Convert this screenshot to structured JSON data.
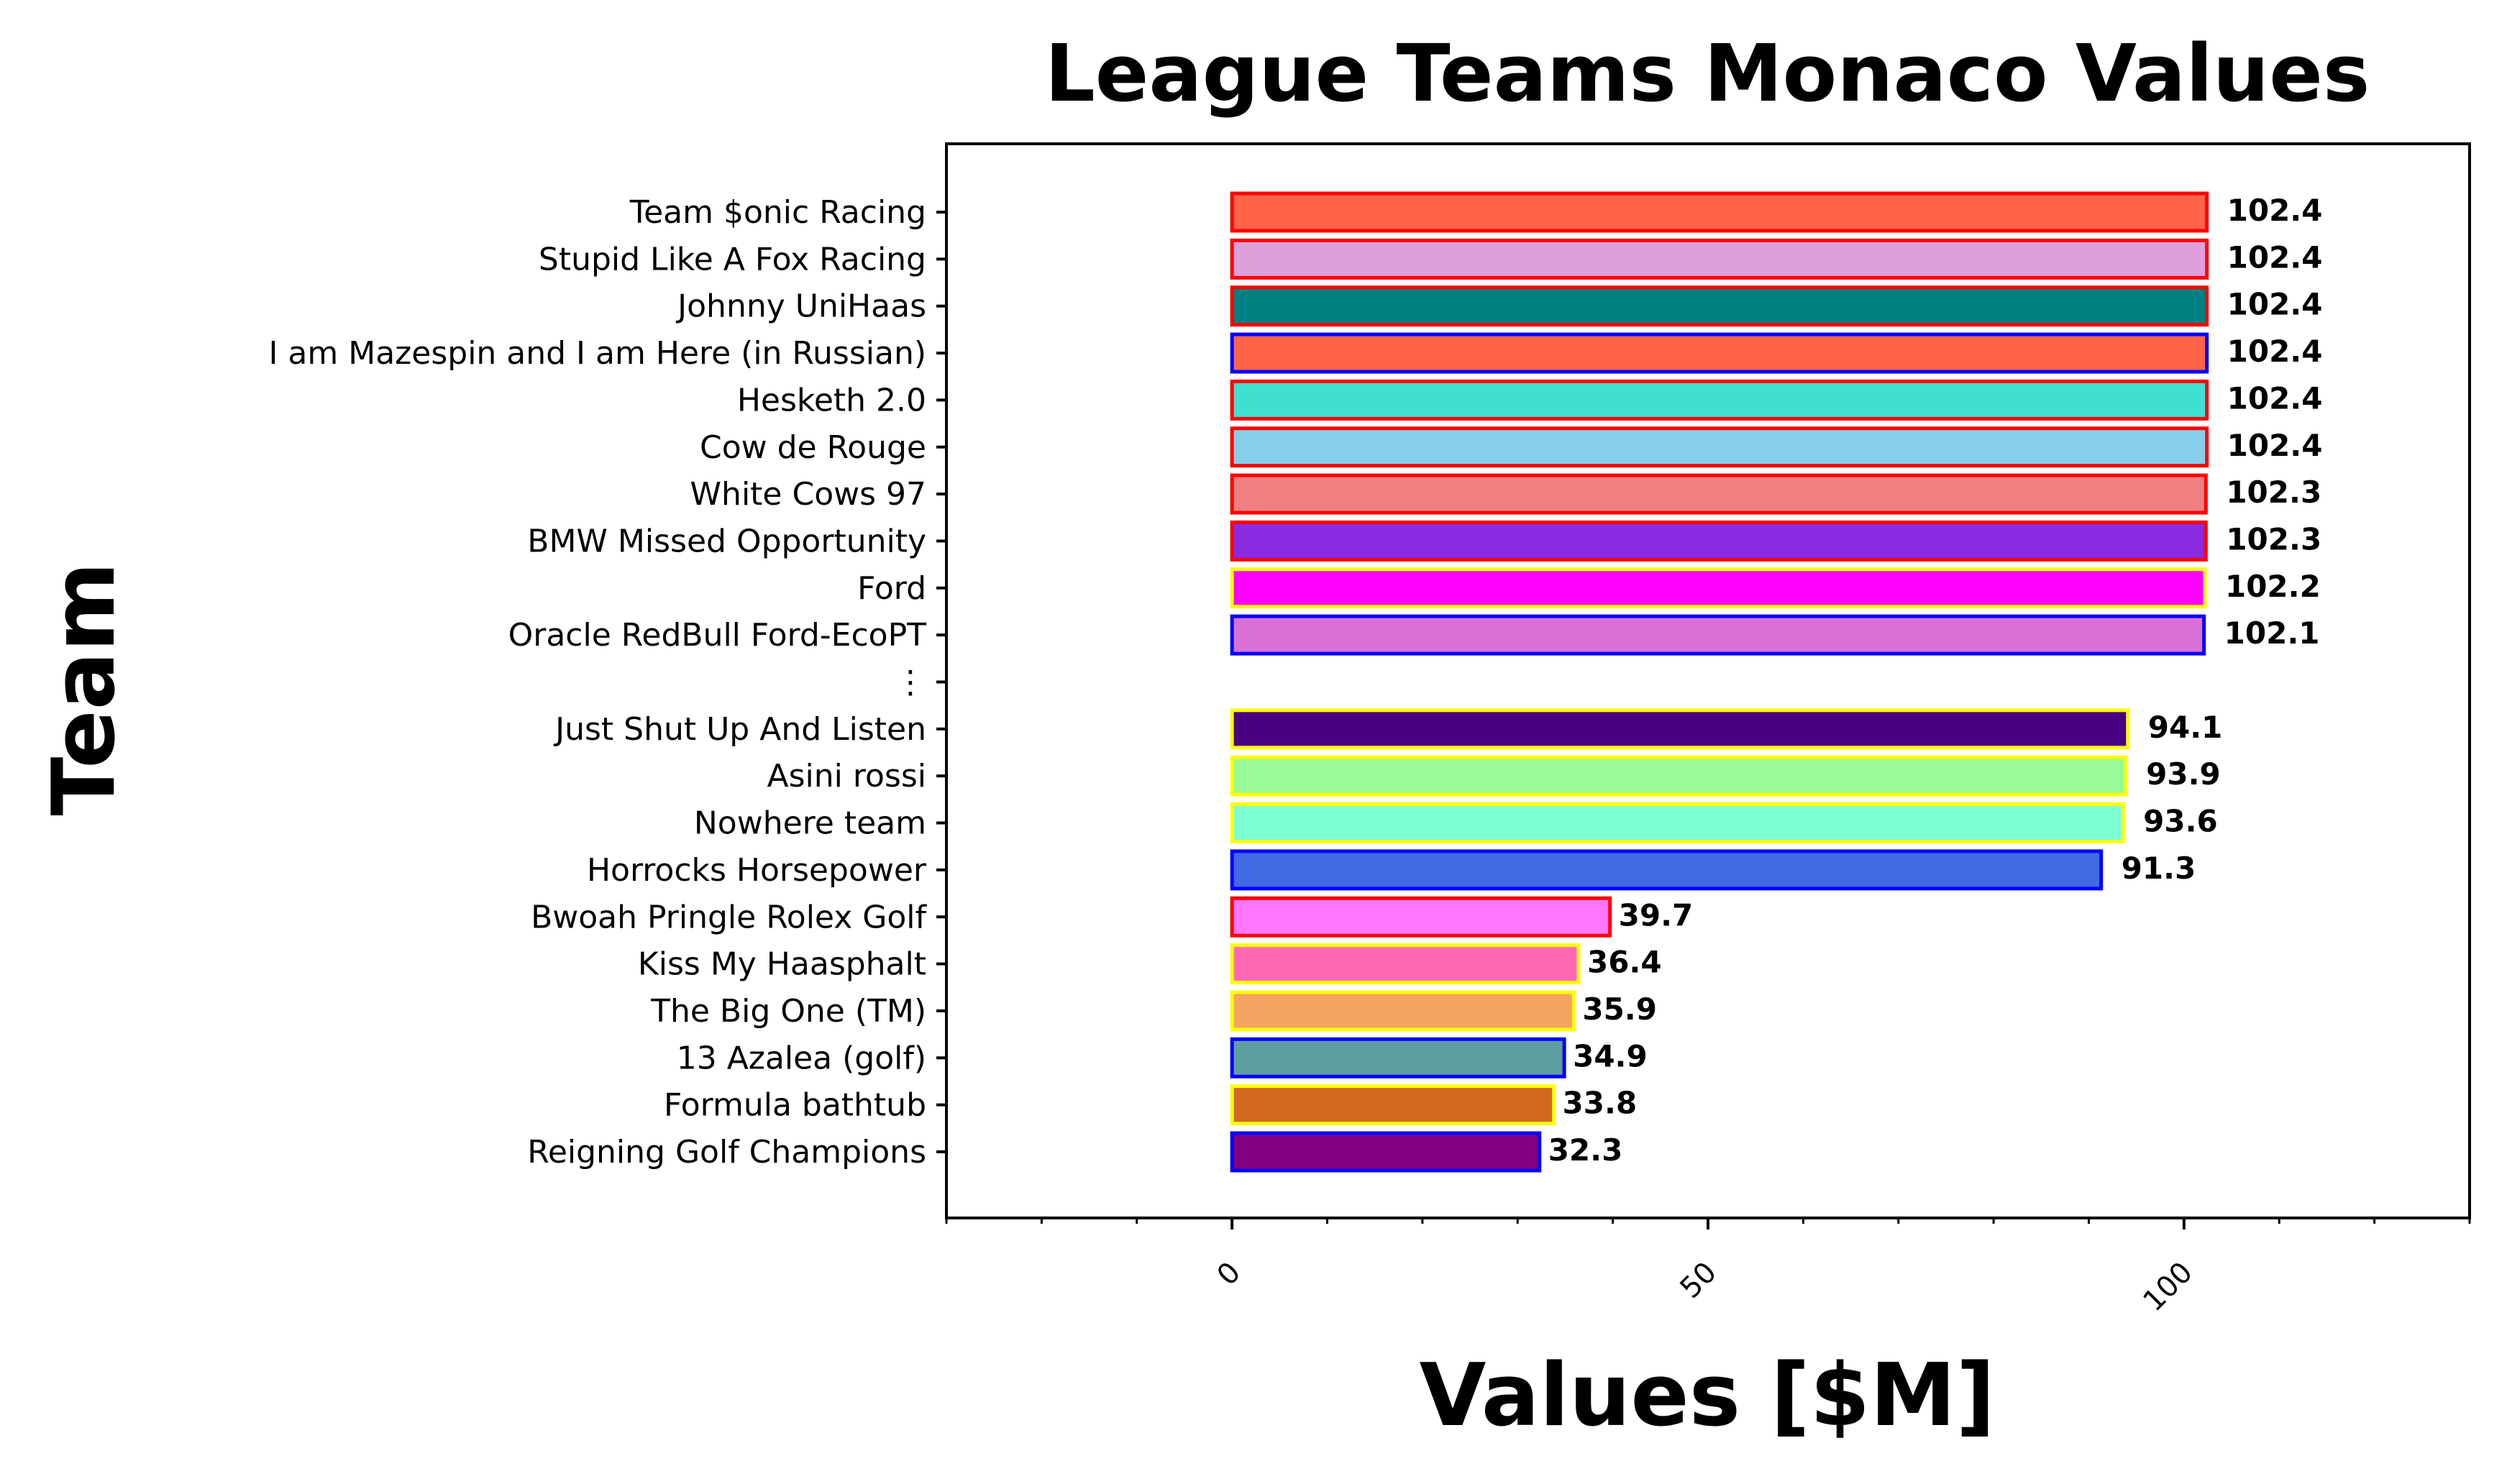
{
  "chart_data": {
    "type": "bar",
    "orientation": "horizontal",
    "title": "League Teams Monaco Values",
    "xlabel": "Values [$M]",
    "ylabel": "Team",
    "xlim": [
      -30,
      130
    ],
    "x_major_ticks": [
      0,
      50,
      100
    ],
    "x_minor_tick_step": 10,
    "grid": false,
    "legend": "none",
    "categories": [
      "Team $onic Racing",
      "Stupid Like A Fox Racing",
      "Johnny UniHaas",
      "I am Mazespin and I am Here (in Russian)",
      "Hesketh 2.0",
      "Cow de Rouge",
      "White Cows 97",
      "BMW Missed Opportunity",
      "Ford",
      "Oracle RedBull Ford-EcoPT",
      "⋮",
      "Just Shut Up And Listen",
      "Asini rossi",
      "Nowhere team",
      "Horrocks Horsepower",
      "Bwoah Pringle Rolex Golf",
      "Kiss My Haasphalt",
      "The Big One (TM)",
      "13 Azalea (golf)",
      "Formula bathtub",
      "Reigning Golf Champions"
    ],
    "values": [
      102.4,
      102.4,
      102.4,
      102.4,
      102.4,
      102.4,
      102.3,
      102.3,
      102.2,
      102.1,
      0,
      94.1,
      93.9,
      93.6,
      91.3,
      39.7,
      36.4,
      35.9,
      34.9,
      33.8,
      32.3
    ],
    "value_labels": [
      "102.4",
      "102.4",
      "102.4",
      "102.4",
      "102.4",
      "102.4",
      "102.3",
      "102.3",
      "102.2",
      "102.1",
      "",
      "94.1",
      "93.9",
      "93.6",
      "91.3",
      "39.7",
      "36.4",
      "35.9",
      "34.9",
      "33.8",
      "32.3"
    ],
    "fill_colors": [
      "#ff6347",
      "#dda0dd",
      "#008080",
      "#ff6347",
      "#40e0d0",
      "#87ceeb",
      "#f08080",
      "#8a2be2",
      "#ff00ff",
      "#da70d6",
      "#000000",
      "#4b0082",
      "#98fb98",
      "#7fffd4",
      "#4169e1",
      "#ff77ff",
      "#ff69b4",
      "#f4a460",
      "#5f9ea0",
      "#d2691e",
      "#800080"
    ],
    "edge_colors": [
      "#ff0000",
      "#ff0000",
      "#ff0000",
      "#0000ff",
      "#ff0000",
      "#ff0000",
      "#ff0000",
      "#ff0000",
      "#ffff00",
      "#0000ff",
      "#000000",
      "#ffff00",
      "#ffff00",
      "#ffff00",
      "#0000ff",
      "#ff0000",
      "#ffff00",
      "#ffff00",
      "#0000ff",
      "#ffff00",
      "#0000ff"
    ]
  }
}
